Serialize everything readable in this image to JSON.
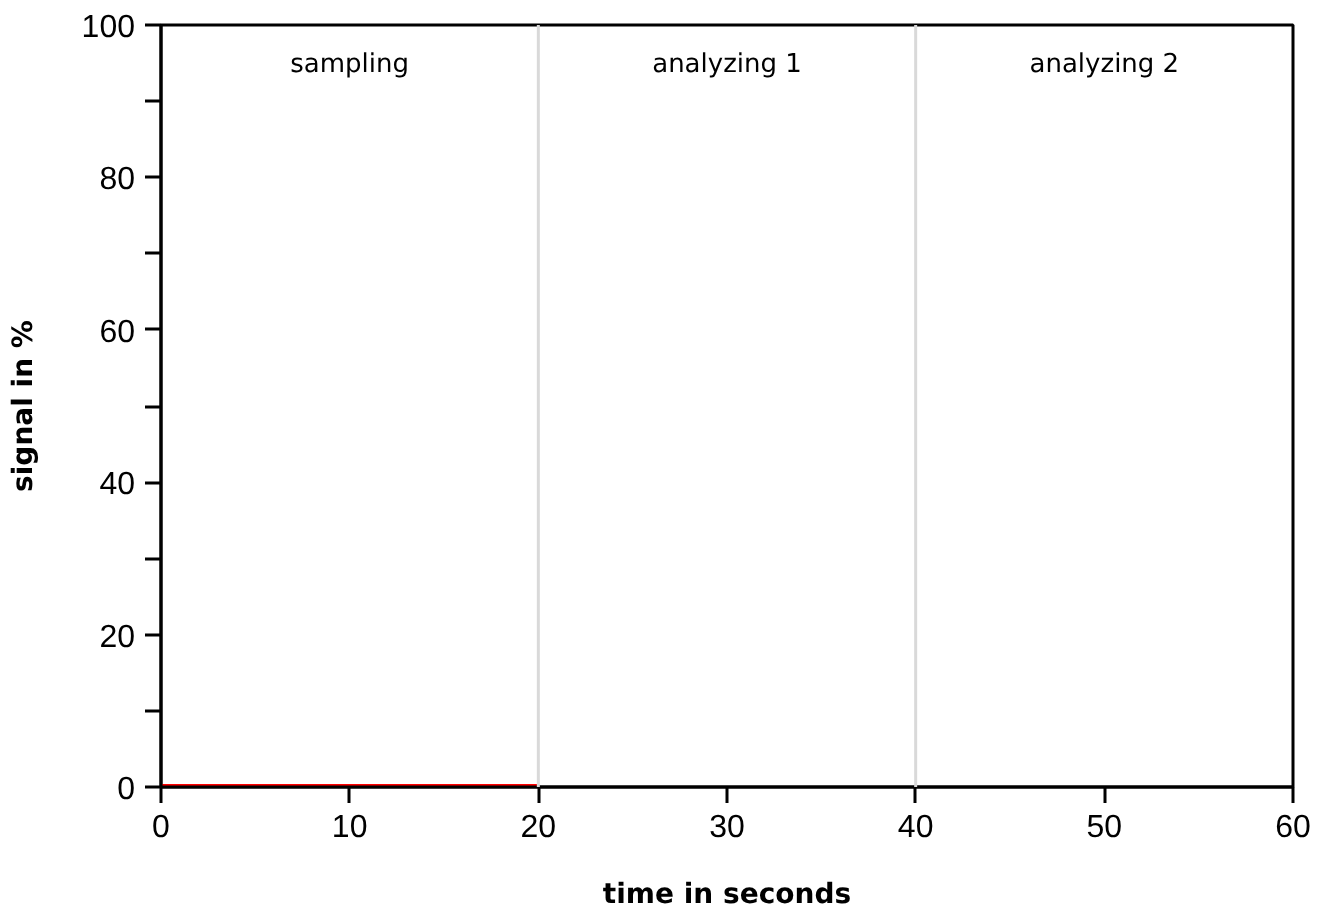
{
  "chart_data": {
    "type": "line",
    "xlabel": "time in seconds",
    "ylabel": "signal in %",
    "x": [
      0,
      20
    ],
    "series": [
      {
        "color": "#ff0000",
        "values": [
          0,
          0
        ]
      }
    ],
    "xlim": [
      0,
      60
    ],
    "xticks": [
      0,
      10,
      20,
      30,
      40,
      50,
      60
    ],
    "ylim": [
      0,
      100
    ],
    "yticks": [
      0,
      {
        "value": 10,
        "label": null
      },
      20,
      {
        "value": 30,
        "label": null
      },
      40,
      {
        "value": 50,
        "label": null
      },
      60,
      {
        "value": 70,
        "label": null
      },
      80,
      {
        "value": 90,
        "label": null
      },
      100
    ],
    "ref_lines": [
      {
        "axis": "x",
        "value": 20,
        "color": "#d9d9d9"
      },
      {
        "axis": "x",
        "value": 40,
        "color": "#d9d9d9"
      }
    ],
    "annotations": [
      "sampling",
      "analyzing 1",
      "analyzing 2"
    ],
    "grid": false,
    "marker": "none",
    "line_style": "solid"
  }
}
